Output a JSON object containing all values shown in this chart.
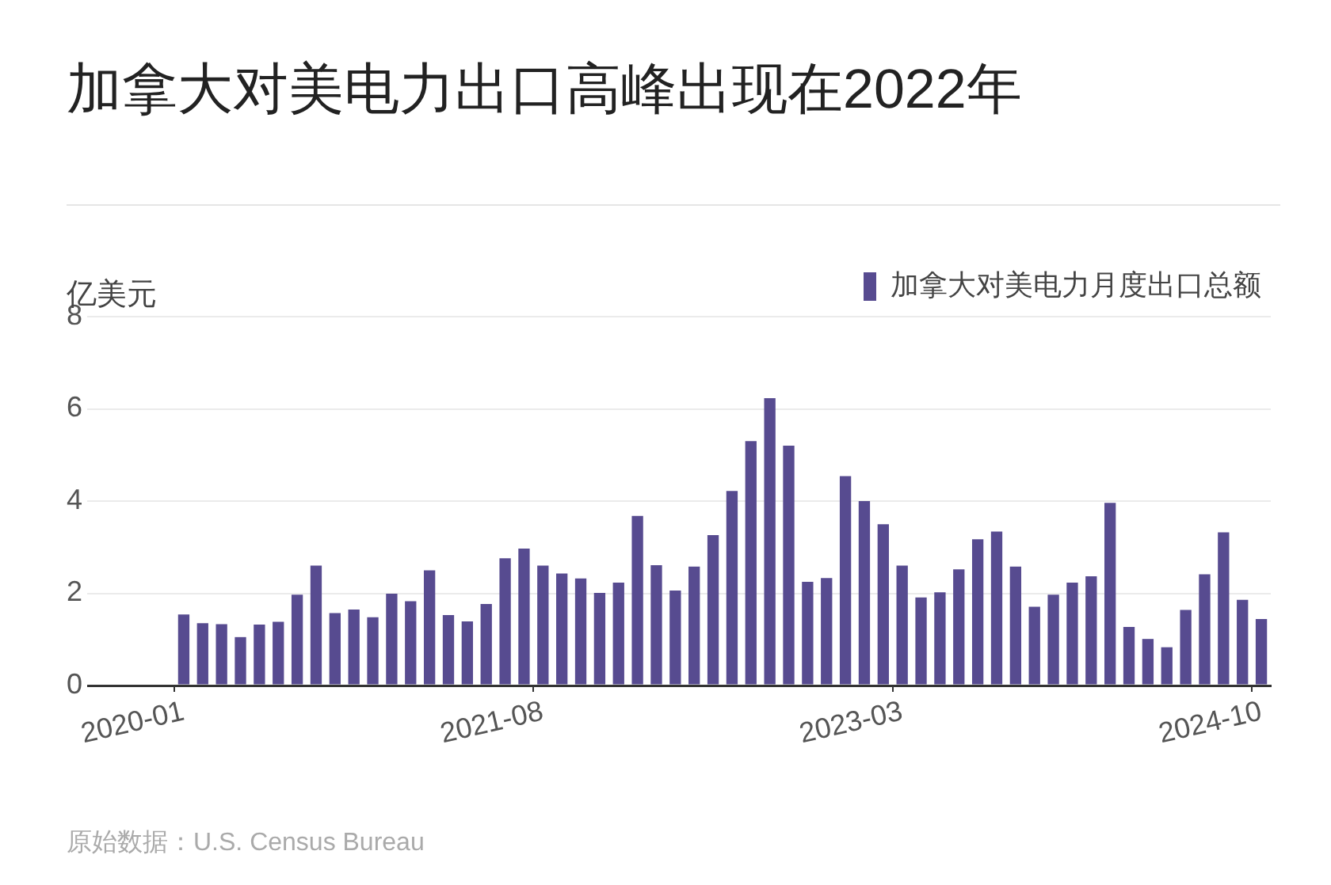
{
  "chart_data": {
    "type": "bar",
    "title": "加拿大对美电力出口高峰出现在2022年",
    "ylabel": "亿美元",
    "categories": [
      "2020-01",
      null,
      null,
      null,
      null,
      null,
      null,
      null,
      null,
      null,
      null,
      null,
      null,
      null,
      null,
      null,
      null,
      null,
      null,
      "2021-08",
      null,
      null,
      null,
      null,
      null,
      null,
      null,
      null,
      null,
      null,
      null,
      null,
      null,
      null,
      null,
      null,
      null,
      null,
      "2023-03",
      null,
      null,
      null,
      null,
      null,
      null,
      null,
      null,
      null,
      null,
      null,
      null,
      null,
      null,
      null,
      null,
      null,
      null,
      "2024-10"
    ],
    "series": [
      {
        "name": "加拿大对美电力月度出口总额",
        "color": "#574b90",
        "values": [
          1.54,
          1.35,
          1.33,
          1.05,
          1.32,
          1.38,
          1.97,
          2.6,
          1.57,
          1.65,
          1.48,
          1.99,
          1.83,
          2.5,
          1.53,
          1.39,
          1.77,
          2.76,
          2.97,
          2.6,
          2.43,
          2.32,
          2.01,
          2.23,
          3.68,
          2.61,
          2.06,
          2.58,
          3.26,
          4.22,
          5.3,
          6.23,
          5.2,
          2.25,
          2.33,
          4.54,
          4.0,
          3.5,
          2.6,
          1.91,
          2.02,
          2.52,
          3.17,
          3.34,
          2.58,
          1.71,
          1.97,
          2.23,
          2.37,
          3.96,
          1.27,
          1.01,
          0.83,
          1.64,
          2.41,
          3.32,
          1.86,
          1.44
        ]
      }
    ],
    "ylim": [
      0,
      8
    ],
    "yticks": [
      0,
      2,
      4,
      6,
      8
    ],
    "grid": "y",
    "legend": "top right",
    "annotations": [
      "原始数据：U.S. Census Bureau"
    ]
  }
}
